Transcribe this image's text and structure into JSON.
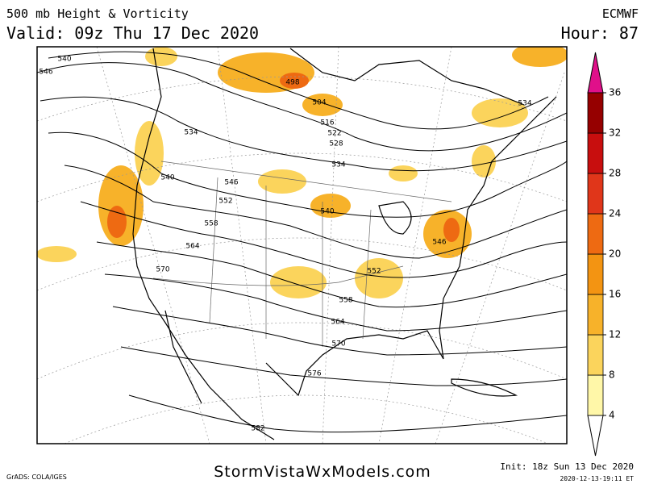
{
  "header": {
    "title": "500 mb Height & Vorticity",
    "valid": "Valid: 09z Thu 17 Dec 2020",
    "model": "ECMWF",
    "hour": "Hour: 87"
  },
  "map": {
    "contour_labels": [
      "540",
      "546",
      "498",
      "504",
      "516",
      "522",
      "528",
      "534",
      "534",
      "540",
      "546",
      "552",
      "558",
      "564",
      "570",
      "540",
      "552",
      "558",
      "564",
      "570",
      "576",
      "582",
      "534",
      "546"
    ]
  },
  "colorbar": {
    "ticks": [
      4,
      8,
      12,
      16,
      20,
      24,
      28,
      32,
      36
    ],
    "colors": [
      "#fff7a8",
      "#fbd45c",
      "#f7b22a",
      "#f39412",
      "#ee6a12",
      "#e0361a",
      "#c80e0e",
      "#960000"
    ],
    "over_color": "#e0108a",
    "under_color": "#ffffff"
  },
  "footer": {
    "software": "GrADS: COLA/IGES",
    "site": "StormVistaWxModels.com",
    "init": "Init: 18z Sun 13 Dec 2020",
    "timestamp": "2020-12-13-19:11 ET"
  }
}
